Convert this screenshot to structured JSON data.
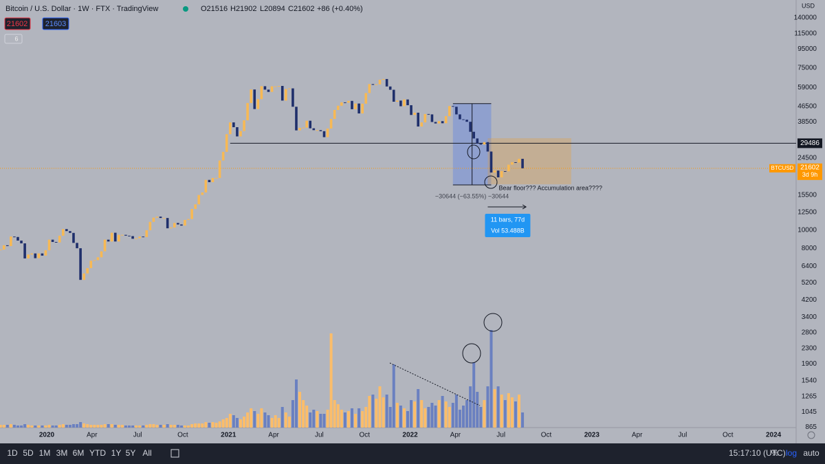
{
  "header": {
    "title": "Bitcoin / U.S. Dollar · 1W · FTX · TradingView",
    "ohlc": [
      "O21516",
      "H21902",
      "L20894",
      "C21602"
    ],
    "change": "+86 (+0.40%)",
    "sell": "21602",
    "buy": "21603",
    "indicators": "6"
  },
  "chart_data": {
    "type": "candlestick",
    "currency": "USD",
    "log_scale": true,
    "grid": false,
    "up_color": "#f7b955",
    "down_color": "#1f2f6b",
    "vol_up_color": "#fbbd6a",
    "vol_down_color": "#6a80c0",
    "close": [
      7870,
      8300,
      8220,
      9250,
      9200,
      8800,
      8500,
      7050,
      7400,
      7500,
      7070,
      7500,
      7300,
      7800,
      8900,
      8650,
      8600,
      9350,
      10150,
      9900,
      9680,
      8550,
      8000,
      5400,
      5850,
      6250,
      6850,
      6900,
      7150,
      7700,
      8900,
      8700,
      9700,
      8700,
      9450,
      9450,
      9350,
      9300,
      9000,
      9050,
      9250,
      9200,
      10000,
      11100,
      11700,
      11850,
      11650,
      11650,
      10250,
      10350,
      10950,
      10750,
      10600,
      11370,
      11500,
      13030,
      13800,
      15500,
      16000,
      18700,
      18180,
      19150,
      19150,
      23800,
      26500,
      33000,
      38200,
      36000,
      32100,
      34300,
      39200,
      48600,
      57500,
      45100,
      51000,
      59900,
      57400,
      55800,
      59800,
      59800,
      60100,
      50100,
      57800,
      58300,
      46400,
      34600,
      35700,
      35800,
      39000,
      35500,
      34700,
      34700,
      34250,
      31800,
      35400,
      39900,
      44600,
      47000,
      49000,
      48800,
      49900,
      45000,
      48300,
      42700,
      48200,
      55000,
      61500,
      60900,
      61300,
      64900,
      65500,
      59700,
      57300,
      49400,
      50100,
      46700,
      50800,
      47300,
      41900,
      43100,
      36300,
      38200,
      42400,
      42200,
      38400,
      37700,
      38800,
      37800,
      41300,
      46800,
      46400,
      42200,
      39700,
      39500,
      38500,
      34000,
      31300,
      29400,
      29000,
      29900,
      26600,
      20500,
      21000,
      19300,
      20850,
      20800,
      22600,
      23300,
      23200,
      24300,
      21602
    ],
    "volume": [
      4,
      4,
      4,
      5,
      4,
      3,
      3,
      5,
      4,
      3,
      3,
      3,
      3,
      3,
      4,
      3,
      3,
      4,
      5,
      4,
      4,
      5,
      5,
      8,
      6,
      5,
      4,
      4,
      4,
      4,
      5,
      5,
      5,
      4,
      4,
      4,
      3,
      3,
      3,
      3,
      3,
      3,
      4,
      5,
      5,
      4,
      4,
      4,
      5,
      4,
      4,
      4,
      3,
      3,
      3,
      5,
      6,
      6,
      6,
      8,
      7,
      8,
      7,
      9,
      12,
      14,
      20,
      18,
      14,
      12,
      16,
      22,
      28,
      24,
      20,
      28,
      22,
      18,
      14,
      18,
      14,
      30,
      22,
      16,
      40,
      70,
      52,
      40,
      32,
      22,
      26,
      24,
      20,
      20,
      26,
      137,
      40,
      34,
      26,
      22,
      24,
      28,
      20,
      28,
      24,
      30,
      46,
      48,
      42,
      60,
      44,
      48,
      30,
      92,
      36,
      32,
      28,
      24,
      40,
      38,
      56,
      40,
      28,
      30,
      36,
      32,
      40,
      46,
      38,
      30,
      36,
      48,
      26,
      32,
      40,
      60,
      95,
      52,
      30,
      40,
      60,
      142,
      56,
      60,
      48,
      40,
      50,
      44,
      38,
      48,
      22
    ],
    "xlim": [
      -0.13,
      228.6
    ],
    "ylim": [
      862,
      174800
    ],
    "yticks": [
      140000,
      115000,
      95000,
      75000,
      59000,
      46500,
      38500,
      24500,
      15500,
      12500,
      10000,
      8000,
      6400,
      5200,
      4200,
      3400,
      2800,
      2300,
      1900,
      1540,
      1265,
      1045,
      865
    ],
    "xticks": [
      {
        "value": 13.3,
        "label": "2020"
      },
      {
        "value": 26.3,
        "label": "Apr"
      },
      {
        "value": 39.4,
        "label": "Jul"
      },
      {
        "value": 52.4,
        "label": "Oct"
      },
      {
        "value": 65.5,
        "label": "2021"
      },
      {
        "value": 78.5,
        "label": "Apr"
      },
      {
        "value": 91.6,
        "label": "Jul"
      },
      {
        "value": 104.6,
        "label": "Oct"
      },
      {
        "value": 117.7,
        "label": "2022"
      },
      {
        "value": 130.7,
        "label": "Apr"
      },
      {
        "value": 143.8,
        "label": "Jul"
      },
      {
        "value": 156.8,
        "label": "Oct"
      },
      {
        "value": 169.9,
        "label": "2023"
      },
      {
        "value": 182.9,
        "label": "Apr"
      },
      {
        "value": 196.0,
        "label": "Jul"
      },
      {
        "value": 209.0,
        "label": "Oct"
      },
      {
        "value": 222.1,
        "label": "2024"
      }
    ],
    "level": 29486,
    "level_from": 66,
    "symbol": "BTCUSD",
    "countdown": "3d 9h",
    "measure": {
      "from_price": 48220,
      "to_price": 17576,
      "from_index": 130,
      "to_index": 141,
      "label": "−30644 (−63.55%) −30644"
    },
    "zone": {
      "top": 31400,
      "bottom": 17700,
      "from_index": 140,
      "to_index": 164,
      "label": "Bear floor??? Accumulation area????"
    },
    "range": {
      "from_index": 140,
      "to_index": 151,
      "bars": "11 bars, 77d",
      "vol": "Vol 53.488B"
    }
  },
  "toolbar": {
    "ranges": [
      "1D",
      "5D",
      "1M",
      "3M",
      "6M",
      "YTD",
      "1Y",
      "5Y",
      "All"
    ],
    "time": "15:17:10 (UTC)",
    "options": [
      "%",
      "log",
      "auto"
    ]
  }
}
